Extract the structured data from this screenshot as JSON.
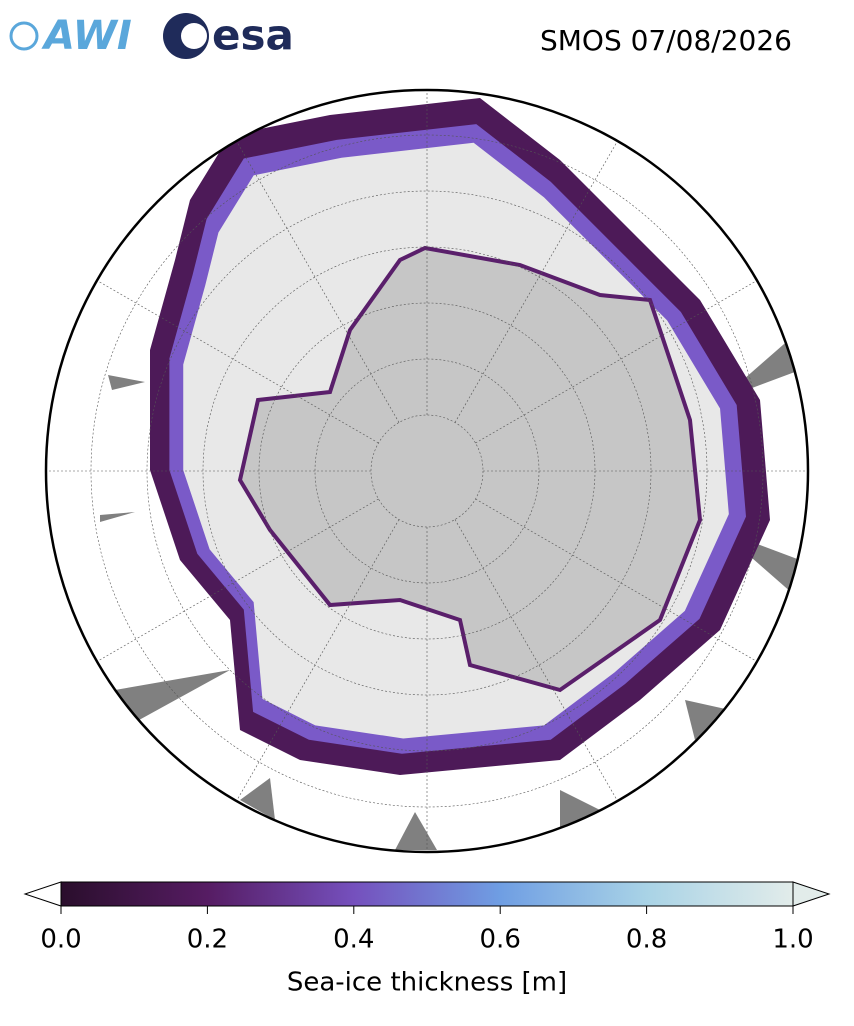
{
  "header": {
    "logos": [
      "AWI",
      "esa"
    ],
    "title": "SMOS 07/08/2026"
  },
  "colorbar": {
    "label": "Sea-ice thickness [m]",
    "lim": [
      0,
      1
    ],
    "ticks": [
      {
        "value": 0,
        "label": "0.0"
      },
      0.2,
      0.4,
      0.6,
      0.8,
      {
        "value": 1,
        "label": "1.0"
      }
    ],
    "colors": [
      "#2a0e2c",
      "#561c63",
      "#7550bd",
      "#6f9ee3",
      "#a9d3e6",
      "#e2ecea"
    ]
  }
}
